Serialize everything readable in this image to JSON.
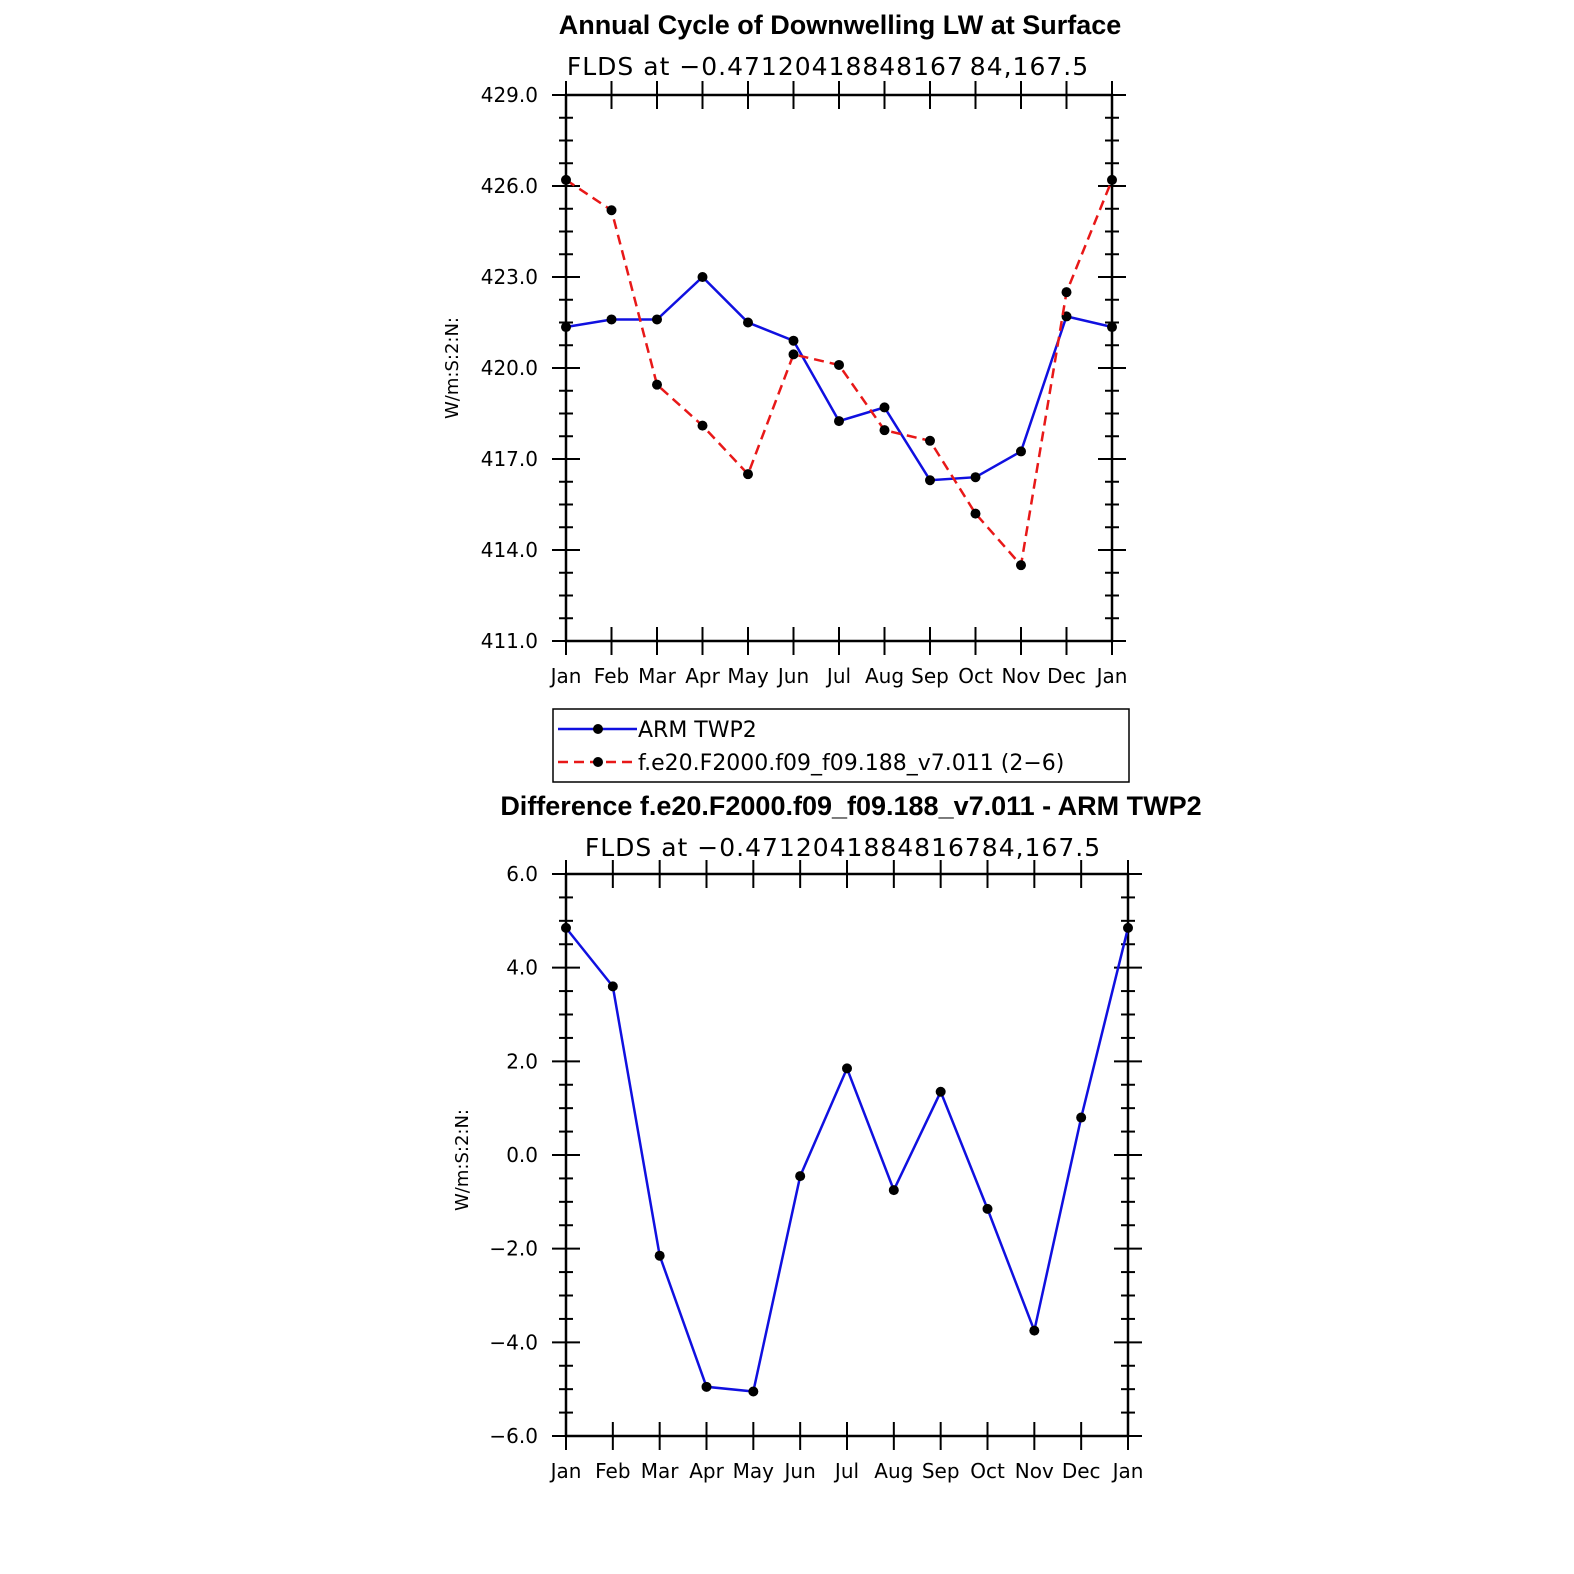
{
  "chart_data": [
    {
      "type": "line",
      "title": "Annual Cycle of Downwelling LW at Surface",
      "subtitle": "FLDS at −0.47120418848167 84,167.5",
      "ylabel": "W/m:S:2:N:",
      "categories": [
        "Jan",
        "Feb",
        "Mar",
        "Apr",
        "May",
        "Jun",
        "Jul",
        "Aug",
        "Sep",
        "Oct",
        "Nov",
        "Dec",
        "Jan"
      ],
      "ylim": [
        411.0,
        429.0
      ],
      "yticks": [
        "411.0",
        "414.0",
        "417.0",
        "420.0",
        "423.0",
        "426.0",
        "429.0"
      ],
      "series": [
        {
          "name": "ARM TWP2",
          "color": "#1010e0",
          "dash": "solid",
          "values": [
            421.35,
            421.6,
            421.6,
            423.0,
            421.5,
            420.9,
            418.25,
            418.7,
            416.3,
            416.4,
            417.25,
            421.7,
            421.35
          ]
        },
        {
          "name": "f.e20.F2000.f09_f09.188_v7.011 (2−6)",
          "color": "#e81818",
          "dash": "dashed",
          "values": [
            426.2,
            425.2,
            419.45,
            418.1,
            416.5,
            420.45,
            420.1,
            417.95,
            417.6,
            415.2,
            413.5,
            422.5,
            426.2
          ]
        }
      ],
      "grid": false,
      "legend": "below"
    },
    {
      "type": "line",
      "title": "Difference f.e20.F2000.f09_f09.188_v7.011 - ARM TWP2",
      "subtitle": "FLDS at −0.4712041884816784,167.5",
      "ylabel": "W/m:S:2:N:",
      "categories": [
        "Jan",
        "Feb",
        "Mar",
        "Apr",
        "May",
        "Jun",
        "Jul",
        "Aug",
        "Sep",
        "Oct",
        "Nov",
        "Dec",
        "Jan"
      ],
      "ylim": [
        -6.0,
        6.0
      ],
      "yticks": [
        "−6.0",
        "−4.0",
        "−2.0",
        "0.0",
        "2.0",
        "4.0",
        "6.0"
      ],
      "series": [
        {
          "color": "#1010e0",
          "dash": "solid",
          "values": [
            4.85,
            3.6,
            -2.15,
            -4.95,
            -5.05,
            -0.45,
            1.85,
            -0.75,
            1.35,
            -1.15,
            -3.75,
            0.8,
            4.85
          ]
        }
      ],
      "grid": false
    }
  ]
}
